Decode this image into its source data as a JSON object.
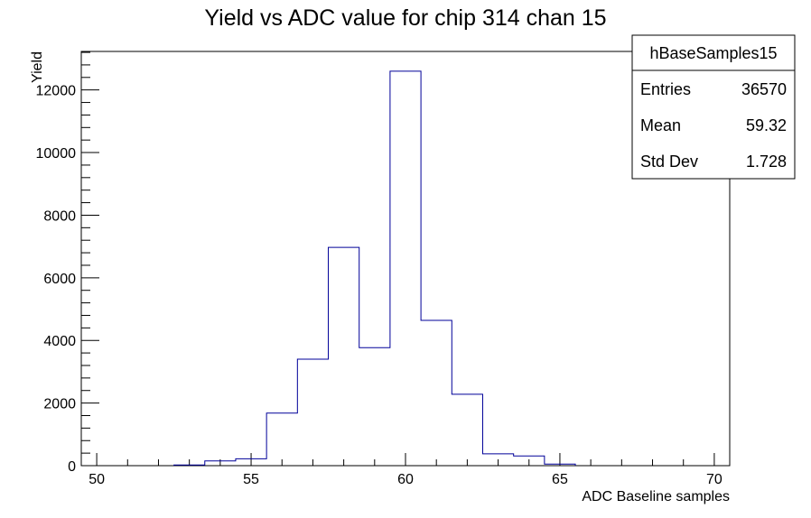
{
  "chart_data": {
    "type": "bar",
    "title": "Yield vs ADC value for chip 314 chan 15",
    "xlabel": "ADC Baseline samples",
    "ylabel": "Yield",
    "xlim": [
      49.5,
      70.5
    ],
    "ylim": [
      0,
      13230
    ],
    "x_ticks": [
      50,
      55,
      60,
      65,
      70
    ],
    "y_ticks": [
      0,
      2000,
      4000,
      6000,
      8000,
      10000,
      12000
    ],
    "line_color": "#000099",
    "bins": [
      {
        "lo": 52.5,
        "hi": 53.5,
        "value": 20
      },
      {
        "lo": 53.5,
        "hi": 54.5,
        "value": 150
      },
      {
        "lo": 54.5,
        "hi": 55.5,
        "value": 220
      },
      {
        "lo": 55.5,
        "hi": 56.5,
        "value": 1680
      },
      {
        "lo": 56.5,
        "hi": 57.5,
        "value": 3400
      },
      {
        "lo": 57.5,
        "hi": 58.5,
        "value": 6970
      },
      {
        "lo": 58.5,
        "hi": 59.5,
        "value": 3770
      },
      {
        "lo": 59.5,
        "hi": 60.5,
        "value": 12600
      },
      {
        "lo": 60.5,
        "hi": 61.5,
        "value": 4640
      },
      {
        "lo": 61.5,
        "hi": 62.5,
        "value": 2280
      },
      {
        "lo": 62.5,
        "hi": 63.5,
        "value": 380
      },
      {
        "lo": 63.5,
        "hi": 64.5,
        "value": 310
      },
      {
        "lo": 64.5,
        "hi": 65.5,
        "value": 50
      }
    ]
  },
  "stats": {
    "name": "hBaseSamples15",
    "rows": [
      {
        "label": "Entries",
        "value": "36570"
      },
      {
        "label": "Mean",
        "value": "59.32"
      },
      {
        "label": "Std Dev",
        "value": "1.728"
      }
    ]
  }
}
